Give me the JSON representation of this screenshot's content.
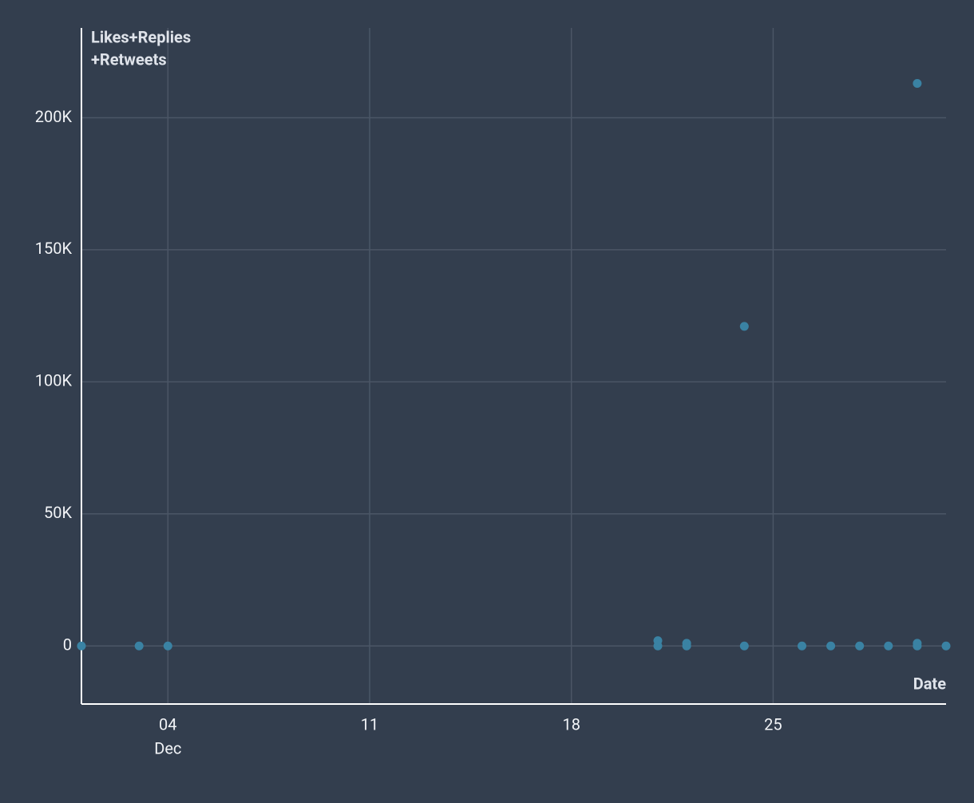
{
  "chart_data": {
    "type": "scatter",
    "x_label": "Date",
    "y_label_lines": [
      "Likes+Replies",
      "+Retweets"
    ],
    "month_label": "Dec",
    "x": [
      1,
      3,
      4,
      21,
      21,
      22,
      22,
      24,
      24,
      26,
      27,
      28,
      29,
      30,
      30,
      30,
      31
    ],
    "series": [
      {
        "name": "Likes+Replies+Retweets",
        "color": "#3a82a3",
        "values": [
          0,
          0,
          0,
          2000,
          0,
          1000,
          0,
          121000,
          0,
          0,
          0,
          0,
          0,
          213000,
          1000,
          0,
          0
        ]
      }
    ],
    "xlim": [
      1,
      31
    ],
    "xticks": [
      {
        "value": 4,
        "label": "04"
      },
      11,
      18,
      25
    ],
    "ylim": [
      -22000,
      234000
    ],
    "yticks": [
      0,
      {
        "value": 50000,
        "label": "50K"
      },
      {
        "value": 100000,
        "label": "100K"
      },
      {
        "value": 150000,
        "label": "150K"
      },
      {
        "value": 200000,
        "label": "200K"
      }
    ],
    "grid": true
  }
}
